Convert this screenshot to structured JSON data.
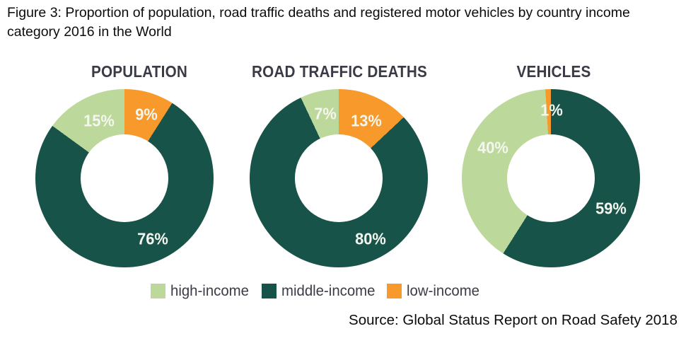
{
  "figure_title": {
    "line1": "Figure 3: Proportion of population, road traffic deaths and registered motor vehicles by country income",
    "line2": "category 2016 in the World"
  },
  "source": "Source: Global Status Report on Road Safety 2018",
  "colors": {
    "high_income": "#BDD89B",
    "middle_income": "#185349",
    "low_income": "#F8992B",
    "section_title_text": "#3B3B47",
    "slice_label_text": "#F4F6F0"
  },
  "legend": [
    {
      "label": "high-income",
      "color": "#BDD89B"
    },
    {
      "label": "middle-income",
      "color": "#185349"
    },
    {
      "label": "low-income",
      "color": "#F8992B"
    }
  ],
  "chart_data": [
    {
      "type": "pie",
      "style": "donut",
      "title": "POPULATION",
      "unit": "%",
      "slice_order": "clockwise-from-top",
      "slices": [
        {
          "name": "low-income",
          "value": 9,
          "label": "9%",
          "color": "#F8992B"
        },
        {
          "name": "middle-income",
          "value": 76,
          "label": "76%",
          "color": "#185349"
        },
        {
          "name": "high-income",
          "value": 15,
          "label": "15%",
          "color": "#BDD89B"
        }
      ]
    },
    {
      "type": "pie",
      "style": "donut",
      "title": "ROAD TRAFFIC DEATHS",
      "unit": "%",
      "slice_order": "clockwise-from-top",
      "slices": [
        {
          "name": "low-income",
          "value": 13,
          "label": "13%",
          "color": "#F8992B"
        },
        {
          "name": "middle-income",
          "value": 80,
          "label": "80%",
          "color": "#185349"
        },
        {
          "name": "high-income",
          "value": 7,
          "label": "7%",
          "color": "#BDD89B"
        }
      ]
    },
    {
      "type": "pie",
      "style": "donut",
      "title": "VEHICLES",
      "unit": "%",
      "slice_order": "clockwise-from-top",
      "slices": [
        {
          "name": "middle-income",
          "value": 59,
          "label": "59%",
          "color": "#185349"
        },
        {
          "name": "high-income",
          "value": 40,
          "label": "40%",
          "color": "#BDD89B"
        },
        {
          "name": "low-income",
          "value": 1,
          "label": "1%",
          "color": "#F8992B"
        }
      ]
    }
  ]
}
